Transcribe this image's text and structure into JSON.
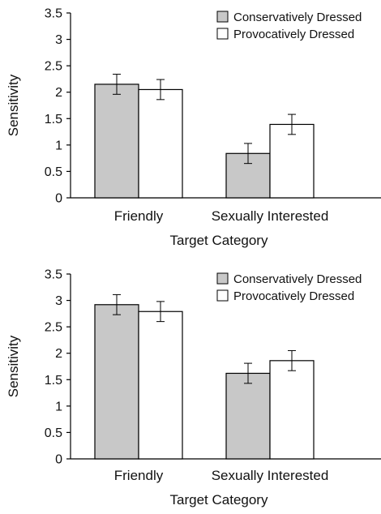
{
  "chart_data": [
    {
      "type": "bar",
      "title": "",
      "xlabel": "Target Category",
      "ylabel": "Sensitivity",
      "ylim": [
        0,
        3.5
      ],
      "yticks": [
        "0",
        "0.5",
        "1",
        "1.5",
        "2",
        "2.5",
        "3",
        "3.5"
      ],
      "categories": [
        "Friendly",
        "Sexually Interested"
      ],
      "series": [
        {
          "name": "Conservatively Dressed",
          "color": "#c8c8c8",
          "values": [
            2.15,
            0.84
          ],
          "error": [
            0.19,
            0.19
          ]
        },
        {
          "name": "Provocatively Dressed",
          "color": "#ffffff",
          "values": [
            2.05,
            1.39
          ],
          "error": [
            0.19,
            0.19
          ]
        }
      ],
      "grid": false,
      "legend_position": "top-right"
    },
    {
      "type": "bar",
      "title": "",
      "xlabel": "Target Category",
      "ylabel": "Sensitivity",
      "ylim": [
        0,
        3.5
      ],
      "yticks": [
        "0",
        "0.5",
        "1",
        "1.5",
        "2",
        "2.5",
        "3",
        "3.5"
      ],
      "categories": [
        "Friendly",
        "Sexually Interested"
      ],
      "series": [
        {
          "name": "Conservatively Dressed",
          "color": "#c8c8c8",
          "values": [
            2.92,
            1.62
          ],
          "error": [
            0.19,
            0.19
          ]
        },
        {
          "name": "Provocatively Dressed",
          "color": "#ffffff",
          "values": [
            2.79,
            1.86
          ],
          "error": [
            0.19,
            0.19
          ]
        }
      ],
      "grid": false,
      "legend_position": "top-right"
    }
  ]
}
